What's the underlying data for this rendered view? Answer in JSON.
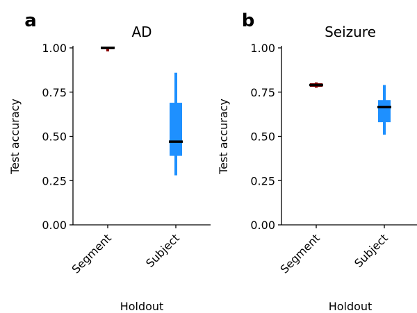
{
  "chart_data": [
    {
      "type": "box",
      "panel_label": "a",
      "title": "AD",
      "xlabel": "Holdout",
      "ylabel": "Test accuracy",
      "ylim": [
        0,
        1
      ],
      "yticks": [
        "0.00",
        "0.25",
        "0.50",
        "0.75",
        "1.00"
      ],
      "categories": [
        "Segment",
        "Subject"
      ],
      "boxes": [
        {
          "category": "Segment",
          "min": 0.98,
          "q1": 0.995,
          "median": 1.0,
          "q3": 1.0,
          "max": 1.0,
          "color": "#8b0000"
        },
        {
          "category": "Subject",
          "min": 0.28,
          "q1": 0.39,
          "median": 0.47,
          "q3": 0.69,
          "max": 0.86,
          "color": "#1e90ff"
        }
      ],
      "grid": false
    },
    {
      "type": "box",
      "panel_label": "b",
      "title": "Seizure",
      "xlabel": "Holdout",
      "ylabel": "Test accuracy",
      "ylim": [
        0,
        1
      ],
      "yticks": [
        "0.00",
        "0.25",
        "0.50",
        "0.75",
        "1.00"
      ],
      "categories": [
        "Segment",
        "Subject"
      ],
      "boxes": [
        {
          "category": "Segment",
          "min": 0.775,
          "q1": 0.78,
          "median": 0.79,
          "q3": 0.8,
          "max": 0.805,
          "color": "#8b0000"
        },
        {
          "category": "Subject",
          "min": 0.51,
          "q1": 0.58,
          "median": 0.665,
          "q3": 0.705,
          "max": 0.79,
          "color": "#1e90ff"
        }
      ],
      "grid": false
    }
  ]
}
